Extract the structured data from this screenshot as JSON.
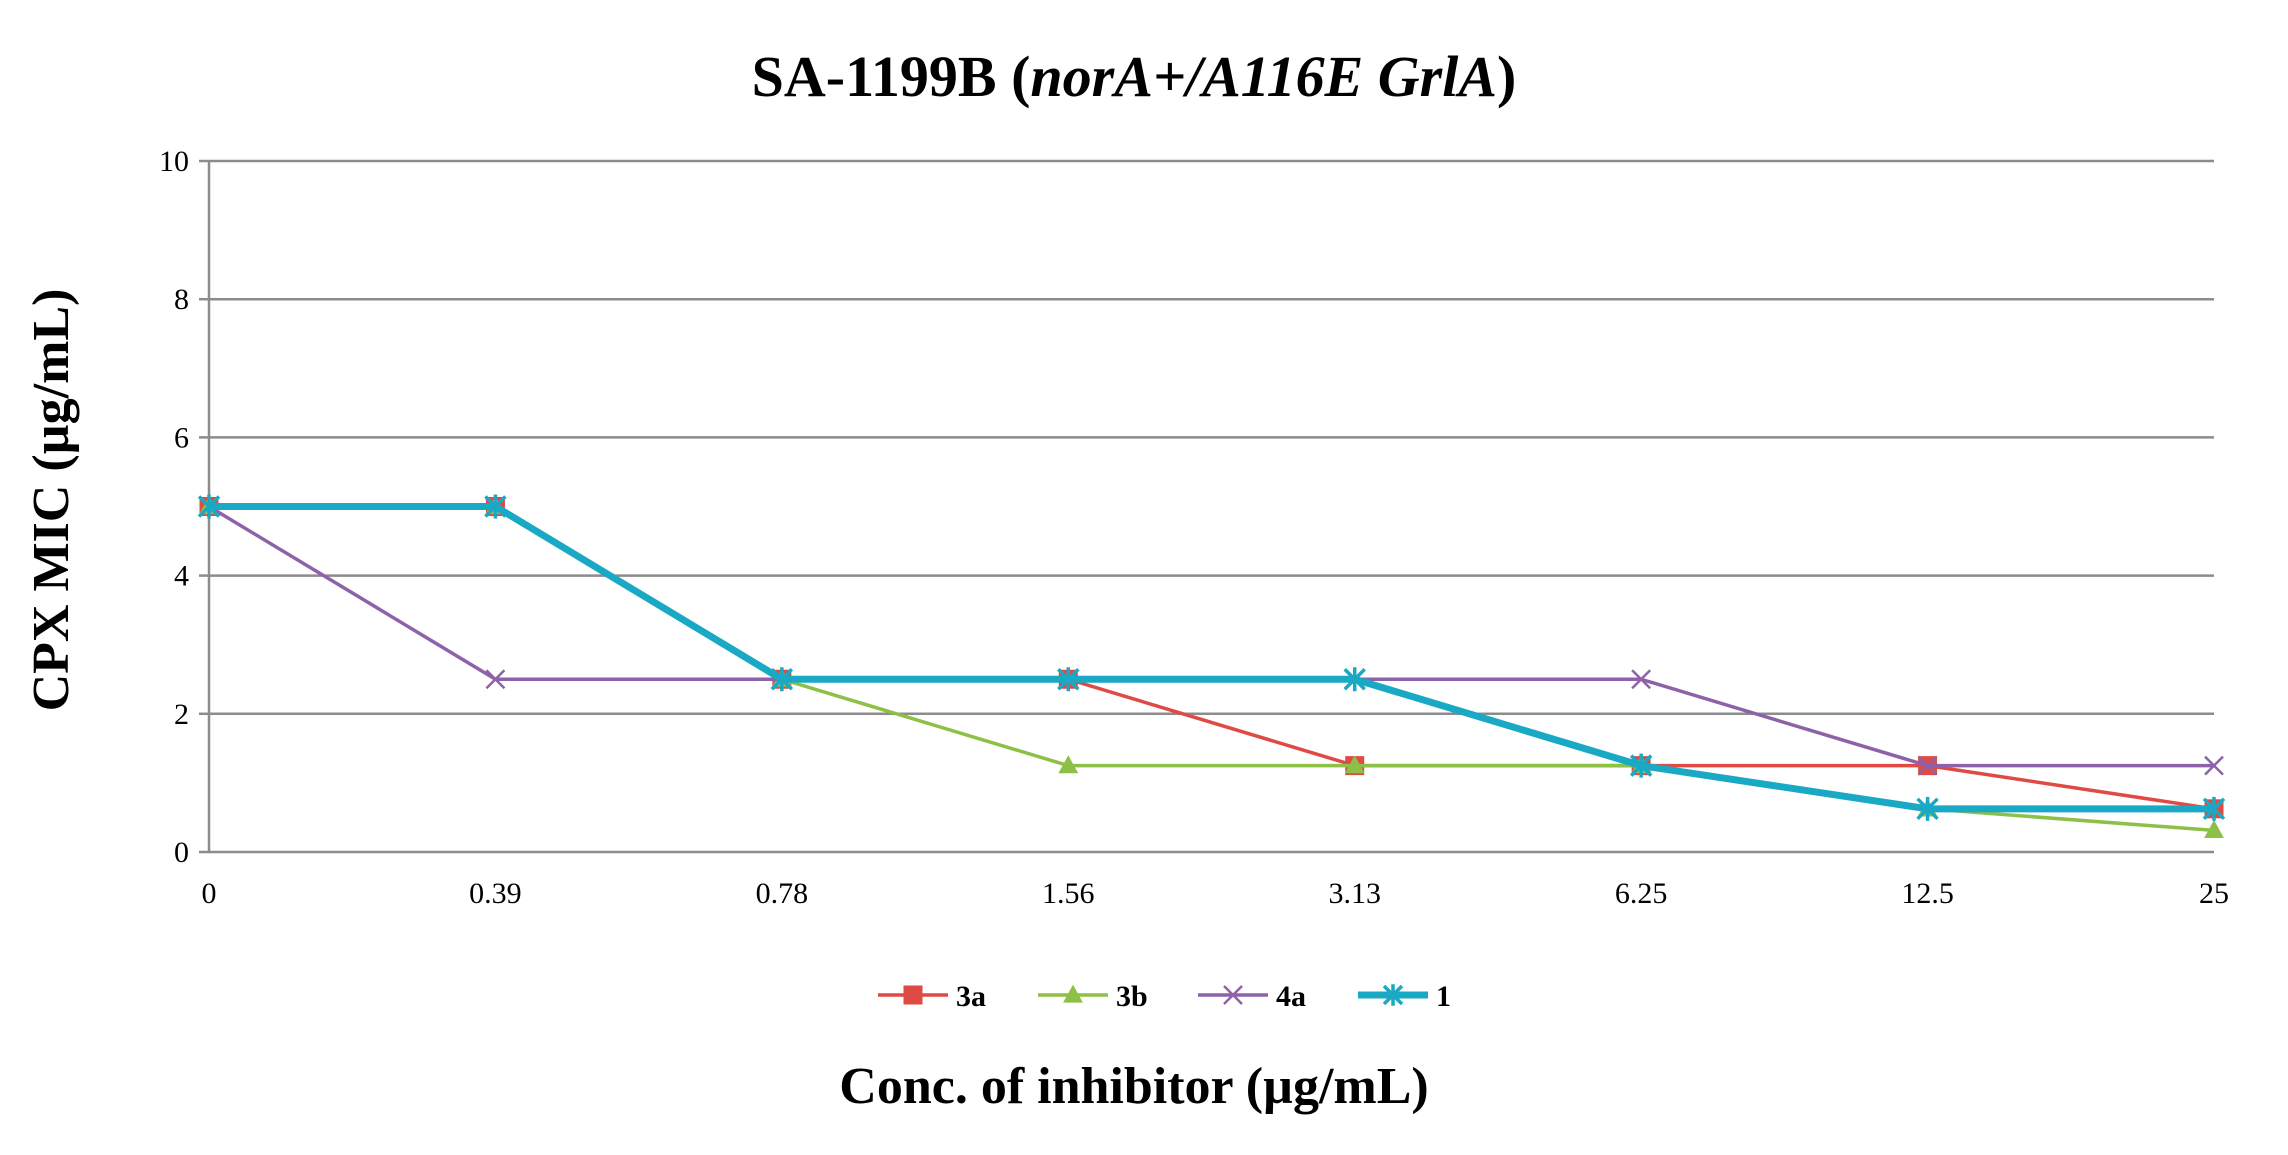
{
  "chart_data": {
    "type": "line",
    "title": {
      "prefix": "SA-1199B (",
      "italic": "norA+/A116E GrlA",
      "suffix": ")"
    },
    "xlabel": "Conc. of inhibitor (µg/mL)",
    "ylabel": "CPX MIC (µg/mL)",
    "categories": [
      "0",
      "0.39",
      "0.78",
      "1.56",
      "3.13",
      "6.25",
      "12.5",
      "25"
    ],
    "ylim": [
      0,
      10
    ],
    "yticks": [
      "0",
      "2",
      "4",
      "6",
      "8",
      "10"
    ],
    "grid": "horizontal",
    "legend_position": "bottom",
    "series": [
      {
        "name": "3a",
        "color": "#E04A45",
        "marker": "square",
        "values": [
          5,
          5,
          2.5,
          2.5,
          1.25,
          1.25,
          1.25,
          0.625
        ]
      },
      {
        "name": "3b",
        "color": "#8CC047",
        "marker": "triangle",
        "values": [
          5,
          5,
          2.5,
          1.25,
          1.25,
          1.25,
          0.625,
          0.3125
        ]
      },
      {
        "name": "4a",
        "color": "#8E62A8",
        "marker": "x",
        "values": [
          5,
          2.5,
          2.5,
          2.5,
          2.5,
          2.5,
          1.25,
          1.25
        ]
      },
      {
        "name": "1",
        "color": "#19A9C4",
        "marker": "asterisk",
        "values": [
          5,
          5,
          2.5,
          2.5,
          2.5,
          1.25,
          0.625,
          0.625
        ]
      }
    ]
  }
}
